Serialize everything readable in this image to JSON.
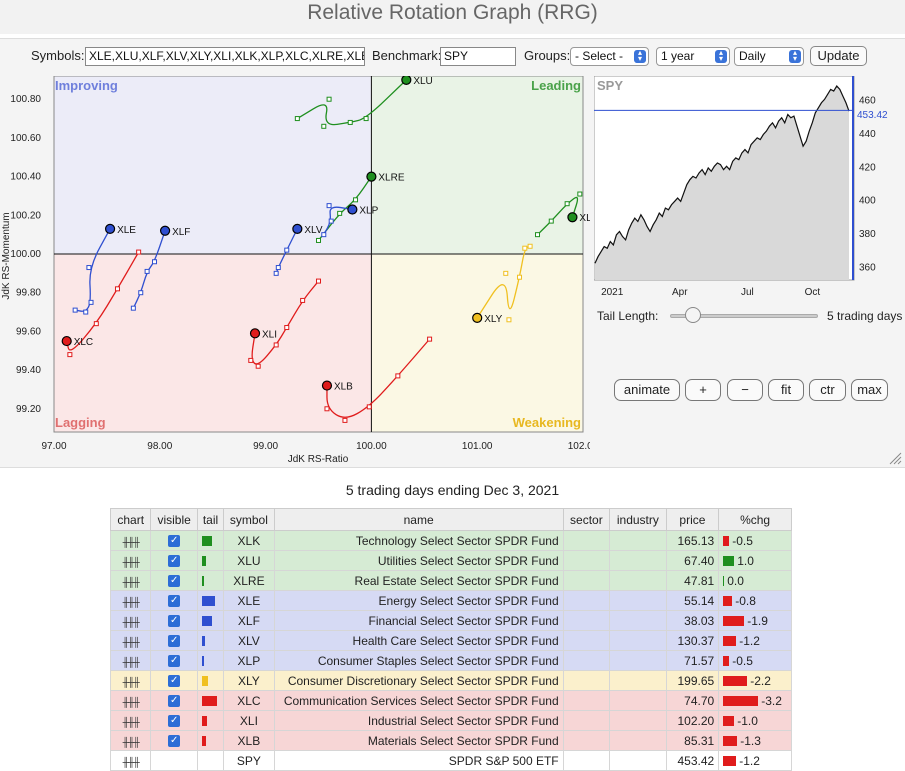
{
  "title": "Relative Rotation Graph (RRG)",
  "controls": {
    "symbols_label": "Symbols:",
    "symbols_value": "XLE,XLU,XLF,XLV,XLY,XLI,XLK,XLP,XLC,XLRE,XLB",
    "benchmark_label": "Benchmark:",
    "benchmark_value": "SPY",
    "groups_label": "Groups:",
    "groups_value": "- Select -",
    "period_value": "1 year",
    "interval_value": "Daily",
    "update_label": "Update"
  },
  "quadrants": {
    "improving": "Improving",
    "leading": "Leading",
    "lagging": "Lagging",
    "weakening": "Weakening"
  },
  "colors": {
    "improving": "#6f7fdc",
    "leading": "#4aa24a",
    "lagging": "#e07070",
    "weakening": "#e8b820",
    "green": "#1f8f1f",
    "blue": "#2f4fd0",
    "red": "#e01c1c",
    "yellow": "#f0c020"
  },
  "chart_data": {
    "type": "scatter",
    "xlabel": "JdK RS-Ratio",
    "ylabel": "JdK RS-Momentum",
    "xlim": [
      97.0,
      102.0
    ],
    "ylim": [
      99.08,
      100.92
    ],
    "xticks": [
      "97.00",
      "98.00",
      "99.00",
      "100.00",
      "101.00",
      "102.00"
    ],
    "yticks": [
      "99.20",
      "99.40",
      "99.60",
      "99.80",
      "100.00",
      "100.20",
      "100.40",
      "100.60",
      "100.80"
    ],
    "series": [
      {
        "name": "XLU",
        "color": "green",
        "points": [
          [
            99.3,
            100.7
          ],
          [
            99.6,
            100.8
          ],
          [
            99.55,
            100.66
          ],
          [
            99.8,
            100.68
          ],
          [
            99.95,
            100.7
          ],
          [
            100.33,
            100.9
          ]
        ]
      },
      {
        "name": "XLRE",
        "color": "green",
        "points": [
          [
            99.5,
            100.07
          ],
          [
            99.7,
            100.21
          ],
          [
            99.85,
            100.28
          ],
          [
            100.0,
            100.4
          ]
        ]
      },
      {
        "name": "XLK",
        "color": "green",
        "points": [
          [
            101.57,
            100.1
          ],
          [
            101.7,
            100.17
          ],
          [
            101.85,
            100.26
          ],
          [
            101.97,
            100.31
          ],
          [
            101.9,
            100.19
          ]
        ]
      },
      {
        "name": "XLE",
        "color": "blue",
        "points": [
          [
            97.2,
            99.71
          ],
          [
            97.3,
            99.7
          ],
          [
            97.35,
            99.75
          ],
          [
            97.33,
            99.93
          ],
          [
            97.53,
            100.13
          ]
        ]
      },
      {
        "name": "XLF",
        "color": "blue",
        "points": [
          [
            97.75,
            99.72
          ],
          [
            97.82,
            99.8
          ],
          [
            97.88,
            99.91
          ],
          [
            97.95,
            99.96
          ],
          [
            98.05,
            100.12
          ]
        ]
      },
      {
        "name": "XLV",
        "color": "blue",
        "points": [
          [
            99.1,
            99.9
          ],
          [
            99.12,
            99.93
          ],
          [
            99.2,
            100.02
          ],
          [
            99.3,
            100.13
          ]
        ]
      },
      {
        "name": "XLP",
        "color": "blue",
        "points": [
          [
            99.55,
            100.1
          ],
          [
            99.62,
            100.17
          ],
          [
            99.6,
            100.25
          ],
          [
            99.82,
            100.23
          ]
        ]
      },
      {
        "name": "XLY",
        "color": "yellow",
        "points": [
          [
            101.5,
            100.04
          ],
          [
            101.45,
            100.03
          ],
          [
            101.4,
            99.88
          ],
          [
            101.3,
            99.66
          ],
          [
            101.27,
            99.9
          ],
          [
            101.0,
            99.67
          ]
        ]
      },
      {
        "name": "XLC",
        "color": "red",
        "points": [
          [
            97.8,
            100.01
          ],
          [
            97.6,
            99.82
          ],
          [
            97.4,
            99.64
          ],
          [
            97.15,
            99.48
          ],
          [
            97.12,
            99.55
          ]
        ]
      },
      {
        "name": "XLI",
        "color": "red",
        "points": [
          [
            99.5,
            99.86
          ],
          [
            99.35,
            99.76
          ],
          [
            99.2,
            99.62
          ],
          [
            99.1,
            99.53
          ],
          [
            98.93,
            99.42
          ],
          [
            98.86,
            99.45
          ],
          [
            98.9,
            99.59
          ]
        ]
      },
      {
        "name": "XLB",
        "color": "red",
        "points": [
          [
            100.55,
            99.56
          ],
          [
            100.25,
            99.37
          ],
          [
            99.98,
            99.21
          ],
          [
            99.75,
            99.14
          ],
          [
            99.58,
            99.2
          ],
          [
            99.58,
            99.32
          ]
        ]
      }
    ]
  },
  "spy_chart": {
    "label": "SPY",
    "last_value": "453.42",
    "yticks": [
      "460",
      "440",
      "420",
      "400",
      "380",
      "360"
    ],
    "xticks": [
      "2021",
      "Apr",
      "Jul",
      "Oct"
    ],
    "ylim": [
      352,
      474
    ],
    "last_price": 453.42,
    "price_series": [
      362,
      366,
      369,
      372,
      371,
      375,
      373,
      379,
      381,
      378,
      376,
      382,
      386,
      389,
      387,
      391,
      388,
      384,
      381,
      385,
      388,
      392,
      390,
      395,
      394,
      397,
      399,
      401,
      399,
      404,
      409,
      412,
      414,
      413,
      416,
      418,
      415,
      419,
      417,
      420,
      422,
      421,
      418,
      420,
      418,
      423,
      425,
      424,
      428,
      430,
      428,
      433,
      435,
      437,
      436,
      439,
      441,
      444,
      446,
      443,
      447,
      449,
      446,
      451,
      449,
      450,
      444,
      438,
      432,
      435,
      441,
      446,
      452,
      455,
      458,
      460,
      463,
      466,
      465,
      468,
      466,
      462,
      458,
      453
    ]
  },
  "tail": {
    "label": "Tail Length:",
    "value_text": "5 trading days",
    "value": 5
  },
  "buttons": {
    "animate": "animate",
    "plus": "+",
    "minus": "−",
    "fit": "fit",
    "ctr": "ctr",
    "max": "max"
  },
  "footnote": "5 trading days ending Dec 3, 2021",
  "table": {
    "headers": [
      "chart",
      "visible",
      "tail",
      "symbol",
      "name",
      "sector",
      "industry",
      "price",
      "%chg"
    ],
    "rows": [
      {
        "symbol": "XLK",
        "name": "Technology Select Sector SPDR Fund",
        "price": "165.13",
        "chg": "-0.5",
        "chg_value": -0.5,
        "tail": 10,
        "color": "green",
        "bg": "g",
        "visible": true
      },
      {
        "symbol": "XLU",
        "name": "Utilities Select Sector SPDR Fund",
        "price": "67.40",
        "chg": "1.0",
        "chg_value": 1.0,
        "tail": 4,
        "color": "green",
        "bg": "g",
        "visible": true
      },
      {
        "symbol": "XLRE",
        "name": "Real Estate Select Sector SPDR Fund",
        "price": "47.81",
        "chg": "0.0",
        "chg_value": 0.0,
        "tail": 2,
        "color": "green",
        "bg": "g",
        "visible": true
      },
      {
        "symbol": "XLE",
        "name": "Energy Select Sector SPDR Fund",
        "price": "55.14",
        "chg": "-0.8",
        "chg_value": -0.8,
        "tail": 13,
        "color": "blue",
        "bg": "b",
        "visible": true
      },
      {
        "symbol": "XLF",
        "name": "Financial Select Sector SPDR Fund",
        "price": "38.03",
        "chg": "-1.9",
        "chg_value": -1.9,
        "tail": 10,
        "color": "blue",
        "bg": "b",
        "visible": true
      },
      {
        "symbol": "XLV",
        "name": "Health Care Select Sector SPDR Fund",
        "price": "130.37",
        "chg": "-1.2",
        "chg_value": -1.2,
        "tail": 3,
        "color": "blue",
        "bg": "b",
        "visible": true
      },
      {
        "symbol": "XLP",
        "name": "Consumer Staples Select Sector SPDR Fund",
        "price": "71.57",
        "chg": "-0.5",
        "chg_value": -0.5,
        "tail": 2,
        "color": "blue",
        "bg": "b",
        "visible": true
      },
      {
        "symbol": "XLY",
        "name": "Consumer Discretionary Select Sector SPDR Fund",
        "price": "199.65",
        "chg": "-2.2",
        "chg_value": -2.2,
        "tail": 6,
        "color": "yellow",
        "bg": "y",
        "visible": true
      },
      {
        "symbol": "XLC",
        "name": "Communication Services Select Sector SPDR Fund",
        "price": "74.70",
        "chg": "-3.2",
        "chg_value": -3.2,
        "tail": 15,
        "color": "red",
        "bg": "r",
        "visible": true
      },
      {
        "symbol": "XLI",
        "name": "Industrial Select Sector SPDR Fund",
        "price": "102.20",
        "chg": "-1.0",
        "chg_value": -1.0,
        "tail": 5,
        "color": "red",
        "bg": "r",
        "visible": true
      },
      {
        "symbol": "XLB",
        "name": "Materials Select Sector SPDR Fund",
        "price": "85.31",
        "chg": "-1.3",
        "chg_value": -1.3,
        "tail": 4,
        "color": "red",
        "bg": "r",
        "visible": true
      },
      {
        "symbol": "SPY",
        "name": "SPDR S&P 500 ETF",
        "price": "453.42",
        "chg": "-1.2",
        "chg_value": -1.2,
        "tail": 0,
        "color": "red",
        "bg": "w",
        "visible": false
      }
    ]
  }
}
